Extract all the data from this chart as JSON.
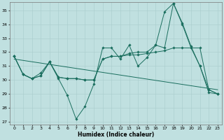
{
  "xlabel": "Humidex (Indice chaleur)",
  "background_color": "#c0e0e0",
  "line_color": "#1a6e5e",
  "xlim": [
    -0.5,
    23.5
  ],
  "ylim": [
    26.8,
    35.6
  ],
  "yticks": [
    27,
    28,
    29,
    30,
    31,
    32,
    33,
    34,
    35
  ],
  "xticks": [
    0,
    1,
    2,
    3,
    4,
    5,
    6,
    7,
    8,
    9,
    10,
    11,
    12,
    13,
    14,
    15,
    16,
    17,
    18,
    19,
    20,
    21,
    22,
    23
  ],
  "series": {
    "zigzag": [
      31.7,
      30.4,
      30.1,
      30.5,
      31.3,
      30.1,
      28.9,
      27.2,
      28.1,
      29.7,
      32.3,
      32.3,
      31.5,
      32.5,
      31.0,
      31.6,
      32.5,
      32.3,
      35.5,
      34.0,
      32.3,
      31.0,
      29.1,
      29.0
    ],
    "smooth": [
      31.7,
      30.4,
      30.1,
      30.3,
      31.3,
      30.2,
      30.1,
      30.1,
      30.0,
      30.0,
      31.5,
      31.7,
      31.7,
      31.8,
      31.8,
      31.9,
      32.0,
      32.1,
      32.3,
      32.3,
      32.3,
      32.3,
      29.3,
      29.0
    ],
    "upper": [
      31.7,
      30.4,
      30.1,
      30.3,
      31.3,
      30.2,
      30.1,
      30.1,
      30.0,
      30.0,
      31.5,
      31.7,
      31.7,
      31.9,
      32.0,
      32.0,
      32.5,
      34.9,
      35.5,
      34.1,
      32.4,
      31.0,
      29.3,
      29.0
    ],
    "trend_x": [
      0,
      23
    ],
    "trend_y": [
      31.5,
      29.3
    ]
  }
}
